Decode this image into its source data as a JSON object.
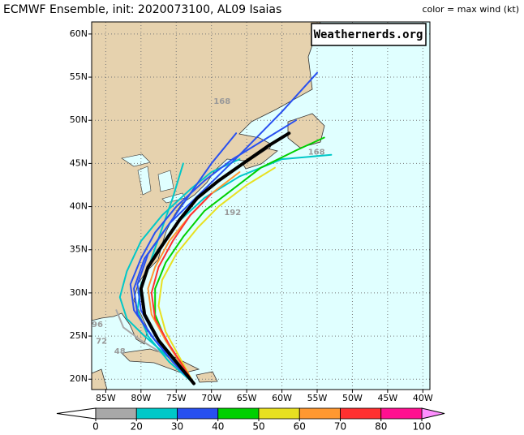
{
  "chart_data": {
    "type": "map",
    "title": "ECMWF Ensemble, init: 2020073100, AL09 Isaias",
    "color_label": "color = max wind (kt)",
    "watermark": "Weathernerds.org",
    "xlim": [
      -87,
      -39
    ],
    "ylim": [
      18.8,
      61.4
    ],
    "xticks": [
      {
        "value": -85,
        "label": "85W"
      },
      {
        "value": -80,
        "label": "80W"
      },
      {
        "value": -75,
        "label": "75W"
      },
      {
        "value": -70,
        "label": "70W"
      },
      {
        "value": -65,
        "label": "65W"
      },
      {
        "value": -60,
        "label": "60W"
      },
      {
        "value": -55,
        "label": "55W"
      },
      {
        "value": -50,
        "label": "50W"
      },
      {
        "value": -45,
        "label": "45W"
      },
      {
        "value": -40,
        "label": "40W"
      }
    ],
    "yticks": [
      {
        "value": 20,
        "label": "20N"
      },
      {
        "value": 25,
        "label": "25N"
      },
      {
        "value": 30,
        "label": "30N"
      },
      {
        "value": 35,
        "label": "35N"
      },
      {
        "value": 40,
        "label": "40N"
      },
      {
        "value": 45,
        "label": "45N"
      },
      {
        "value": 50,
        "label": "50N"
      },
      {
        "value": 55,
        "label": "55N"
      },
      {
        "value": 60,
        "label": "60N"
      }
    ],
    "grid": true,
    "colorbar": {
      "bounds": [
        0,
        20,
        30,
        40,
        50,
        60,
        70,
        80,
        100
      ],
      "colors": [
        "#a8a8a8",
        "#00c8c8",
        "#2850f0",
        "#00d000",
        "#e8e020",
        "#ff9830",
        "#ff3030",
        "#ff1090"
      ],
      "under_color": "#ffffff",
      "over_color": "#ff90ff"
    },
    "annotations": [
      {
        "text": "168",
        "lon": -68.5,
        "lat": 52.2
      },
      {
        "text": "168",
        "lon": -55.1,
        "lat": 46.3
      },
      {
        "text": "192",
        "lon": -67,
        "lat": 39.3
      },
      {
        "text": "96",
        "lon": -86.2,
        "lat": 26.3
      },
      {
        "text": "72",
        "lon": -85.6,
        "lat": 24.4
      },
      {
        "text": "48",
        "lon": -83,
        "lat": 23.2
      }
    ],
    "tracks": [
      {
        "color": "#a8a8a8",
        "lon": [
          -72.5,
          -76,
          -80,
          -82.5,
          -83.5
        ],
        "lat": [
          19.5,
          22.5,
          24.5,
          26,
          28
        ]
      },
      {
        "color": "#00c8c8",
        "lon": [
          -72.5,
          -76,
          -79.5,
          -82,
          -83,
          -82,
          -80,
          -77,
          -73,
          -70,
          -66
        ],
        "lat": [
          19.5,
          22.5,
          25,
          27,
          29.5,
          32.5,
          36,
          39,
          42,
          44,
          45.5
        ]
      },
      {
        "color": "#00c8c8",
        "lon": [
          -72.5,
          -76,
          -79,
          -80.5,
          -80,
          -78,
          -75,
          -71,
          -66,
          -60,
          -53
        ],
        "lat": [
          19.5,
          22,
          25,
          28,
          31,
          34.5,
          38,
          41,
          43.5,
          45.5,
          46
        ]
      },
      {
        "color": "#00c8c8",
        "lon": [
          -72.5,
          -75,
          -77.5,
          -79.5,
          -80,
          -78.5,
          -77,
          -75.5,
          -74
        ],
        "lat": [
          19.5,
          22,
          24.5,
          27.5,
          30.5,
          34,
          37.5,
          41,
          45
        ]
      },
      {
        "color": "#2850f0",
        "lon": [
          -72.5,
          -75.5,
          -78.5,
          -81,
          -81.5,
          -80,
          -78,
          -75,
          -71,
          -67,
          -62,
          -58
        ],
        "lat": [
          19.5,
          22,
          25,
          28,
          31,
          34,
          37,
          40,
          43,
          45.5,
          48,
          50
        ]
      },
      {
        "color": "#2850f0",
        "lon": [
          -72.5,
          -75,
          -78,
          -80.5,
          -81,
          -79.5,
          -76,
          -71,
          -66,
          -60,
          -55
        ],
        "lat": [
          19.5,
          22,
          24.5,
          27.5,
          30.5,
          34,
          38,
          42,
          46,
          51,
          55.5
        ]
      },
      {
        "color": "#2850f0",
        "lon": [
          -72.5,
          -75,
          -78,
          -80,
          -80.5,
          -79,
          -76,
          -73,
          -70,
          -66.5
        ],
        "lat": [
          19.5,
          22,
          25,
          28,
          31,
          34.5,
          38,
          41.5,
          45,
          48.5
        ]
      },
      {
        "color": "#00d000",
        "lon": [
          -72.5,
          -74.5,
          -76.5,
          -78,
          -78,
          -76.5,
          -74,
          -71,
          -67,
          -63,
          -58,
          -54
        ],
        "lat": [
          19.5,
          22,
          24.5,
          27.5,
          30.5,
          33.5,
          36.5,
          39.5,
          42,
          44.5,
          46.5,
          48
        ]
      },
      {
        "color": "#e8e020",
        "lon": [
          -72.5,
          -74.5,
          -76.5,
          -77.5,
          -77,
          -75,
          -72,
          -69,
          -65,
          -61
        ],
        "lat": [
          19.5,
          22.5,
          25.5,
          28.5,
          31.5,
          34.5,
          37.5,
          40,
          42.5,
          44.5
        ]
      },
      {
        "color": "#ff9830",
        "lon": [
          -72.5,
          -74.5,
          -76.5,
          -78.5,
          -79,
          -78,
          -76,
          -73,
          -70,
          -66
        ],
        "lat": [
          19.5,
          22,
          24.5,
          27.5,
          30.5,
          33,
          36,
          39,
          41.5,
          44
        ]
      },
      {
        "color": "#ff3030",
        "lon": [
          -72.5,
          -74,
          -76,
          -78,
          -78.5,
          -77.5,
          -75.5,
          -73,
          -70
        ],
        "lat": [
          19.5,
          21.5,
          24,
          27,
          30,
          33,
          36,
          39,
          41.5
        ]
      },
      {
        "color": "#000000",
        "lon": [
          -72.5,
          -75,
          -77.5,
          -79.5,
          -80,
          -79,
          -77,
          -74.5,
          -72,
          -69,
          -65.5,
          -62,
          -59
        ],
        "lat": [
          19.5,
          22,
          24.5,
          27.5,
          30.5,
          33,
          35.5,
          38.5,
          41,
          43,
          45,
          47,
          48.5
        ]
      }
    ]
  }
}
